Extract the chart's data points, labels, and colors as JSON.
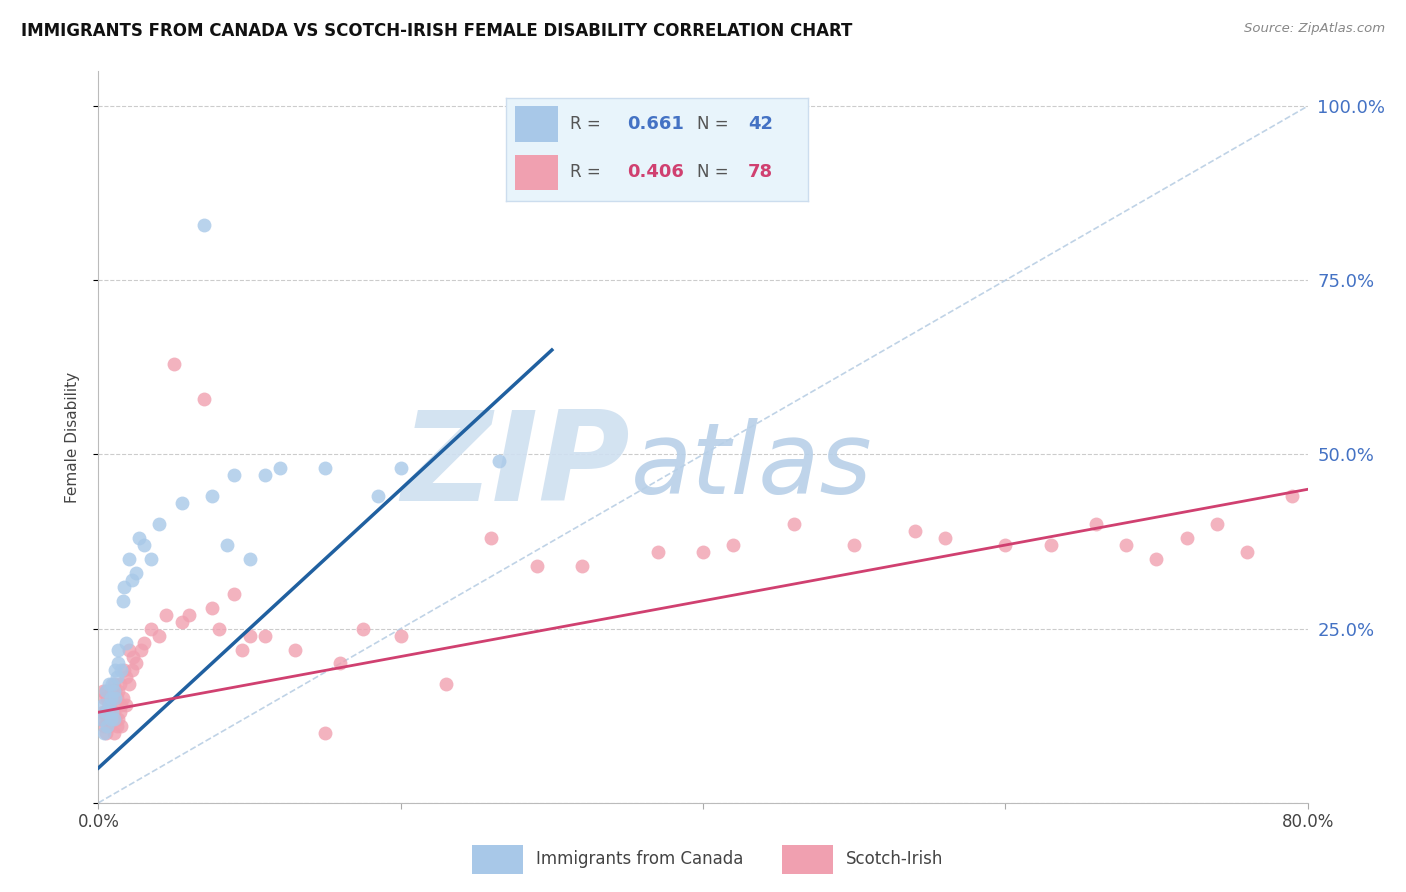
{
  "title": "IMMIGRANTS FROM CANADA VS SCOTCH-IRISH FEMALE DISABILITY CORRELATION CHART",
  "source": "Source: ZipAtlas.com",
  "ylabel": "Female Disability",
  "xlim": [
    0.0,
    0.8
  ],
  "ylim": [
    0.0,
    1.05
  ],
  "yticks": [
    0.0,
    0.25,
    0.5,
    0.75,
    1.0
  ],
  "ytick_labels": [
    "",
    "25.0%",
    "50.0%",
    "75.0%",
    "100.0%"
  ],
  "xticks": [
    0.0,
    0.2,
    0.4,
    0.6,
    0.8
  ],
  "xtick_labels": [
    "0.0%",
    "",
    "",
    "",
    "80.0%"
  ],
  "blue_R": "0.661",
  "blue_N": "42",
  "pink_R": "0.406",
  "pink_N": "78",
  "blue_scatter_color": "#a8c8e8",
  "pink_scatter_color": "#f0a0b0",
  "blue_line_color": "#2060a0",
  "pink_line_color": "#d04070",
  "diag_line_color": "#b0c8e0",
  "watermark_zip_color": "#c8dff0",
  "watermark_atlas_color": "#b0d0e8",
  "legend_bg_color": "#e8f4fb",
  "legend_border_color": "#ccddee",
  "blue_label_color": "#4472c4",
  "pink_label_color": "#d04070",
  "right_axis_color": "#4472c4",
  "blue_scatter_x": [
    0.002,
    0.003,
    0.004,
    0.005,
    0.005,
    0.006,
    0.007,
    0.007,
    0.008,
    0.008,
    0.009,
    0.009,
    0.01,
    0.01,
    0.011,
    0.011,
    0.012,
    0.013,
    0.013,
    0.015,
    0.016,
    0.017,
    0.018,
    0.02,
    0.022,
    0.025,
    0.027,
    0.03,
    0.035,
    0.04,
    0.055,
    0.07,
    0.075,
    0.085,
    0.09,
    0.1,
    0.11,
    0.12,
    0.15,
    0.185,
    0.2,
    0.265
  ],
  "blue_scatter_y": [
    0.12,
    0.14,
    0.1,
    0.13,
    0.16,
    0.11,
    0.14,
    0.17,
    0.12,
    0.15,
    0.13,
    0.17,
    0.12,
    0.16,
    0.15,
    0.19,
    0.18,
    0.2,
    0.22,
    0.19,
    0.29,
    0.31,
    0.23,
    0.35,
    0.32,
    0.33,
    0.38,
    0.37,
    0.35,
    0.4,
    0.43,
    0.83,
    0.44,
    0.37,
    0.47,
    0.35,
    0.47,
    0.48,
    0.48,
    0.44,
    0.48,
    0.49
  ],
  "pink_scatter_x": [
    0.002,
    0.003,
    0.003,
    0.004,
    0.004,
    0.005,
    0.005,
    0.005,
    0.006,
    0.006,
    0.007,
    0.007,
    0.008,
    0.008,
    0.009,
    0.009,
    0.01,
    0.01,
    0.01,
    0.011,
    0.011,
    0.012,
    0.012,
    0.013,
    0.013,
    0.014,
    0.014,
    0.015,
    0.015,
    0.016,
    0.017,
    0.018,
    0.018,
    0.02,
    0.02,
    0.022,
    0.023,
    0.025,
    0.028,
    0.03,
    0.035,
    0.04,
    0.045,
    0.05,
    0.055,
    0.06,
    0.07,
    0.075,
    0.08,
    0.09,
    0.095,
    0.1,
    0.11,
    0.13,
    0.15,
    0.16,
    0.175,
    0.2,
    0.23,
    0.26,
    0.29,
    0.32,
    0.37,
    0.4,
    0.42,
    0.46,
    0.5,
    0.54,
    0.56,
    0.6,
    0.63,
    0.66,
    0.68,
    0.7,
    0.72,
    0.74,
    0.76,
    0.79
  ],
  "pink_scatter_y": [
    0.12,
    0.13,
    0.16,
    0.11,
    0.15,
    0.1,
    0.13,
    0.16,
    0.12,
    0.15,
    0.11,
    0.14,
    0.13,
    0.16,
    0.12,
    0.15,
    0.1,
    0.13,
    0.17,
    0.12,
    0.16,
    0.11,
    0.15,
    0.12,
    0.16,
    0.13,
    0.17,
    0.11,
    0.14,
    0.15,
    0.19,
    0.14,
    0.18,
    0.17,
    0.22,
    0.19,
    0.21,
    0.2,
    0.22,
    0.23,
    0.25,
    0.24,
    0.27,
    0.63,
    0.26,
    0.27,
    0.58,
    0.28,
    0.25,
    0.3,
    0.22,
    0.24,
    0.24,
    0.22,
    0.1,
    0.2,
    0.25,
    0.24,
    0.17,
    0.38,
    0.34,
    0.34,
    0.36,
    0.36,
    0.37,
    0.4,
    0.37,
    0.39,
    0.38,
    0.37,
    0.37,
    0.4,
    0.37,
    0.35,
    0.38,
    0.4,
    0.36,
    0.44
  ],
  "blue_line_x": [
    0.0,
    0.3
  ],
  "blue_line_y": [
    0.05,
    0.65
  ],
  "pink_line_x": [
    0.0,
    0.8
  ],
  "pink_line_y": [
    0.13,
    0.45
  ],
  "diag_line_x": [
    0.0,
    0.8
  ],
  "diag_line_y": [
    0.0,
    1.0
  ]
}
